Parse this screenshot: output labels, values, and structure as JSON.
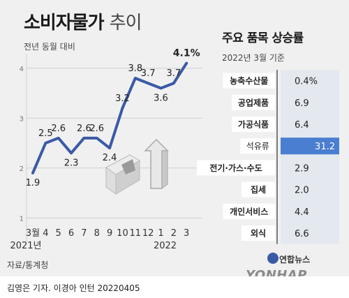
{
  "title": "소비자물가",
  "title_sub": "추이",
  "subtitle": "전년 동월 대비",
  "right_title": "주요 품목 상승률",
  "right_subtitle": "2022년 3월 기준",
  "source": "자료/통계청",
  "credit": "김영은 기자. 이경아 인턴  20220405",
  "agency_korean": "연합뉴스",
  "agency_english": "YONHAP NEWS",
  "colors": {
    "line": "#3b5aa6",
    "bar_highlight": "#4a7ed0",
    "bar_column": "#e4e8ef",
    "label_box": "#ffffff"
  },
  "icons": {
    "illustration": "won-currency-up-arrow-icon",
    "logo": "yonhap-logo-icon"
  },
  "chart_data": [
    {
      "type": "line",
      "x": [
        "3월",
        "4",
        "5",
        "6",
        "7",
        "8",
        "9",
        "10",
        "11",
        "12",
        "1",
        "2",
        "3"
      ],
      "x_year_labels": [
        {
          "label": "2021년",
          "index": 0
        },
        {
          "label": "2022",
          "index": 10
        }
      ],
      "values": [
        1.9,
        2.5,
        2.6,
        2.3,
        2.6,
        2.6,
        2.4,
        3.2,
        3.8,
        3.7,
        3.6,
        3.7,
        4.1
      ],
      "value_labels": [
        "1.9",
        "2.5",
        "2.6",
        "2.3",
        "2.6",
        "2.6",
        "2.4",
        "3.2",
        "3.8",
        "3.7",
        "3.6",
        "3.7",
        "4.1%"
      ],
      "yticks": [
        "1",
        "2",
        "3",
        "4"
      ],
      "ylim": [
        0.5,
        4.2
      ],
      "grid": true
    },
    {
      "type": "bar",
      "orientation": "horizontal",
      "categories": [
        "농축수산물",
        "공업제품",
        "가공식품",
        "석유류",
        "전기·가스·수도",
        "집세",
        "개인서비스",
        "외식"
      ],
      "values": [
        0.4,
        6.9,
        6.4,
        31.2,
        2.9,
        2.0,
        4.4,
        6.6
      ],
      "value_labels": [
        "0.4%",
        "6.9",
        "6.4",
        "31.2",
        "2.9",
        "2.0",
        "4.4",
        "6.6"
      ],
      "highlight_index": 3
    }
  ]
}
